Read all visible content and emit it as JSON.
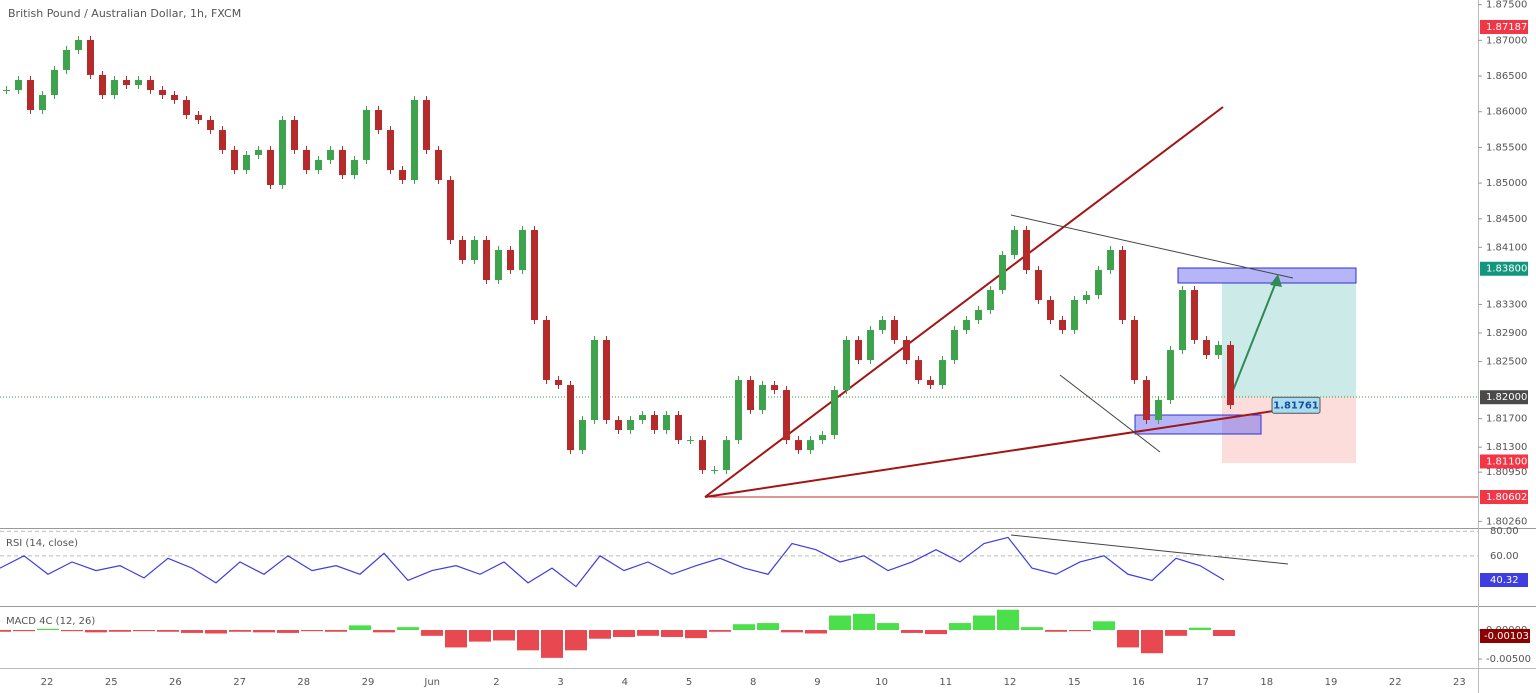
{
  "chart_data": {
    "type": "candlestick",
    "title": "British Pound / Australian Dollar, 1h, FXCM",
    "up_color": "#3fa34d",
    "down_color": "#b52b2b",
    "ylim": [
      1.80168,
      1.87565
    ],
    "yticks": [
      {
        "value": 1.875,
        "label": "1.87500"
      },
      {
        "value": 1.87,
        "label": "1.87000"
      },
      {
        "value": 1.865,
        "label": "1.86500"
      },
      {
        "value": 1.86,
        "label": "1.86000"
      },
      {
        "value": 1.855,
        "label": "1.85500"
      },
      {
        "value": 1.85,
        "label": "1.85000"
      },
      {
        "value": 1.845,
        "label": "1.84500"
      },
      {
        "value": 1.841,
        "label": "1.84100"
      },
      {
        "value": 1.833,
        "label": "1.83300"
      },
      {
        "value": 1.829,
        "label": "1.82900"
      },
      {
        "value": 1.825,
        "label": "1.82500"
      },
      {
        "value": 1.817,
        "label": "1.81700"
      },
      {
        "value": 1.813,
        "label": "1.81300"
      },
      {
        "value": 1.8095,
        "label": "1.80950"
      },
      {
        "value": 1.8026,
        "label": "1.80260"
      }
    ],
    "close": [
      1.86304,
      1.86444,
      1.86024,
      1.86234,
      1.86585,
      1.86865,
      1.87005,
      1.86515,
      1.86234,
      1.86444,
      1.86374,
      1.86444,
      1.86304,
      1.86234,
      1.86164,
      1.85954,
      1.85884,
      1.85744,
      1.85464,
      1.85183,
      1.85394,
      1.85464,
      1.84973,
      1.85884,
      1.85464,
      1.85183,
      1.85324,
      1.85464,
      1.85113,
      1.85324,
      1.86024,
      1.85744,
      1.85183,
      1.85043,
      1.86164,
      1.85464,
      1.85043,
      1.84203,
      1.83922,
      1.84203,
      1.83642,
      1.84063,
      1.83782,
      1.84343,
      1.83082,
      1.82241,
      1.82171,
      1.8126,
      1.81681,
      1.82802,
      1.81681,
      1.81541,
      1.81681,
      1.81751,
      1.81541,
      1.81751,
      1.814,
      1.814,
      1.8098,
      1.8098,
      1.814,
      1.82241,
      1.81821,
      1.82171,
      1.82101,
      1.814,
      1.8126,
      1.814,
      1.8147,
      1.82101,
      1.82802,
      1.82521,
      1.82942,
      1.83082,
      1.82802,
      1.82521,
      1.82241,
      1.82171,
      1.82521,
      1.82942,
      1.83082,
      1.83222,
      1.83502,
      1.83993,
      1.84343,
      1.83782,
      1.83362,
      1.83082,
      1.82942,
      1.83362,
      1.83432,
      1.83782,
      1.84063,
      1.83082,
      1.82241,
      1.81681,
      1.81961,
      1.82661,
      1.83502,
      1.82802,
      1.82591,
      1.82732,
      1.81891
    ],
    "price_markers": [
      {
        "value": 1.87187,
        "color": "#f23645"
      },
      {
        "value": 1.838,
        "label": "1.83800",
        "color": "#12977f"
      },
      {
        "value": 1.82,
        "label": "1.82000",
        "color": "#4a4a4a"
      },
      {
        "value": 1.811,
        "label": "1.81100",
        "color": "#f23645"
      },
      {
        "value": 1.80602,
        "color": "#f23645"
      }
    ],
    "entry_label": 1.81761,
    "x_labels": [
      "22",
      "25",
      "26",
      "27",
      "28",
      "29",
      "Jun",
      "2",
      "3",
      "4",
      "5",
      "8",
      "9",
      "10",
      "11",
      "12",
      "15",
      "16",
      "17",
      "18",
      "19",
      "22",
      "23"
    ],
    "rsi": {
      "title": "RSI (14, close)",
      "color": "#3d3de0",
      "ylim": [
        20,
        81
      ],
      "yticks": [
        {
          "value": 80,
          "label": "80.00"
        },
        {
          "value": 60,
          "label": "60.00"
        }
      ],
      "values": [
        50,
        60,
        45,
        55,
        48,
        52,
        42,
        58,
        50,
        38,
        55,
        45,
        60,
        48,
        52,
        45,
        62,
        40,
        48,
        52,
        45,
        55,
        38,
        50,
        35,
        60,
        48,
        55,
        45,
        52,
        58,
        50,
        45,
        70,
        65,
        55,
        60,
        48,
        55,
        65,
        55,
        70,
        75,
        50,
        45,
        55,
        60,
        45,
        40,
        58,
        52,
        40.32
      ]
    },
    "macd": {
      "title": "MACD 4C (12, 26)",
      "ylim": [
        -0.00655,
        0.00397
      ],
      "up_color": "#4be04b",
      "down_color": "#e8484f",
      "yticks": [
        {
          "value": 0,
          "label": "0.00000"
        },
        {
          "value": -0.005,
          "label": "-0.00500"
        }
      ],
      "values": [
        -0.0003,
        -0.0002,
        0.0002,
        -0.0002,
        -0.0004,
        -0.0003,
        -0.0002,
        -0.0003,
        -0.0005,
        -0.0006,
        -0.0003,
        -0.0004,
        -0.0005,
        -0.0002,
        -0.0003,
        0.0008,
        -0.0004,
        0.0005,
        -0.001,
        -0.003,
        -0.002,
        -0.0018,
        -0.0035,
        -0.0048,
        -0.0035,
        -0.0015,
        -0.0012,
        -0.001,
        -0.0012,
        -0.0014,
        -0.0003,
        0.001,
        0.0012,
        -0.0004,
        -0.0006,
        0.0025,
        0.0028,
        0.0012,
        -0.0005,
        -0.0007,
        0.0012,
        0.0025,
        0.0035,
        0.0005,
        -0.0003,
        -0.0002,
        0.0015,
        -0.003,
        -0.004,
        -0.001,
        0.0004,
        -0.00103
      ]
    }
  }
}
